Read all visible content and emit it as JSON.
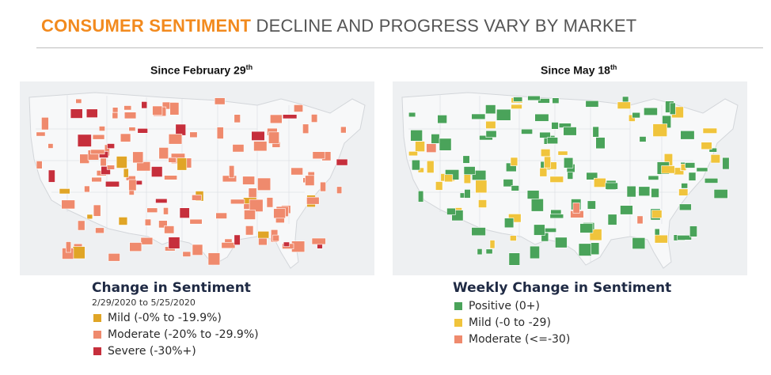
{
  "header": {
    "accent": "CONSUMER SENTIMENT",
    "rest": "DECLINE AND PROGRESS VARY BY MARKET"
  },
  "colors": {
    "accent": "#f28a1e",
    "mild": "#e0a526",
    "moderate": "#ef8a6d",
    "severe": "#c62f3c",
    "positive": "#4aa35a",
    "mild_weekly": "#f0c43c"
  },
  "left_map": {
    "title_main": "Since February 29",
    "title_sup": "th",
    "legend": {
      "title": "Change in Sentiment",
      "subtitle": "2/29/2020 to 5/25/2020",
      "items": [
        {
          "label": "Mild (-0% to -19.9%)",
          "color": "#e0a526"
        },
        {
          "label": "Moderate (-20% to -29.9%)",
          "color": "#ef8a6d"
        },
        {
          "label": "Severe (-30%+)",
          "color": "#c62f3c"
        }
      ]
    }
  },
  "right_map": {
    "title_main": "Since May 18",
    "title_sup": "th",
    "legend": {
      "title": "Weekly Change in Sentiment",
      "items": [
        {
          "label": "Positive (0+)",
          "color": "#4aa35a"
        },
        {
          "label": "Mild (-0 to -29)",
          "color": "#f0c43c"
        },
        {
          "label": "Moderate (<=-30)",
          "color": "#ef8a6d"
        }
      ]
    }
  }
}
